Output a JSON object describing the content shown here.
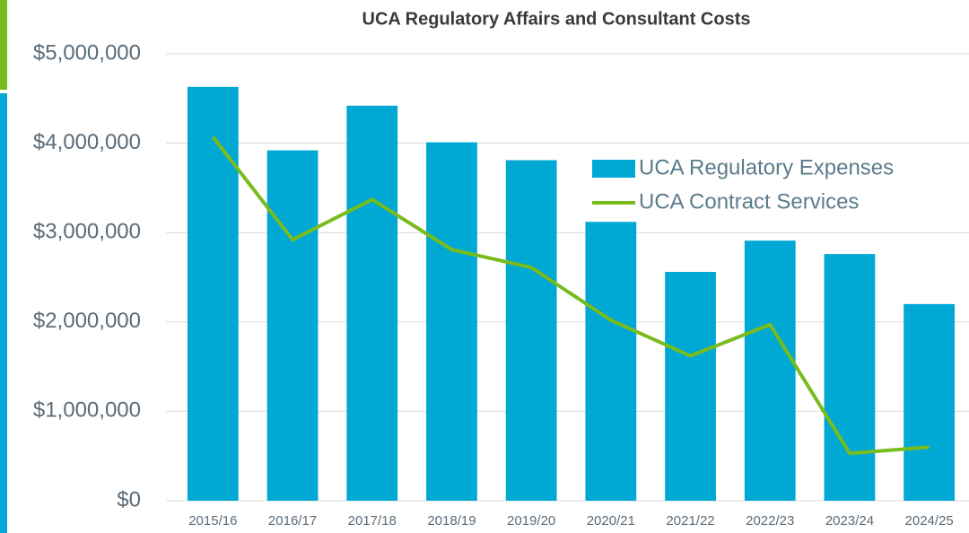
{
  "chart_data": {
    "type": "bar",
    "title": "UCA Regulatory Affairs and Consultant Costs",
    "categories": [
      "2015/16",
      "2016/17",
      "2017/18",
      "2018/19",
      "2019/20",
      "2020/21",
      "2021/22",
      "2022/23",
      "2023/24",
      "2024/25"
    ],
    "series": [
      {
        "name": "UCA Regulatory Expenses",
        "type": "bar",
        "color": "#00a8d4",
        "values": [
          4630000,
          3920000,
          4420000,
          4010000,
          3810000,
          3120000,
          2560000,
          2910000,
          2760000,
          2200000
        ]
      },
      {
        "name": "UCA Contract Services",
        "type": "line",
        "color": "#78bc1e",
        "values": [
          4070000,
          2920000,
          3370000,
          2810000,
          2610000,
          2020000,
          1620000,
          1970000,
          530000,
          600000
        ]
      }
    ],
    "ylim": [
      0,
      5000000
    ],
    "yticks": [
      {
        "value": 0,
        "label": "$0"
      },
      {
        "value": 1000000,
        "label": "$1,000,000"
      },
      {
        "value": 2000000,
        "label": "$2,000,000"
      },
      {
        "value": 3000000,
        "label": "$3,000,000"
      },
      {
        "value": 4000000,
        "label": "$4,000,000"
      },
      {
        "value": 5000000,
        "label": "$5,000,000"
      }
    ],
    "grid": true,
    "legend": "right"
  }
}
